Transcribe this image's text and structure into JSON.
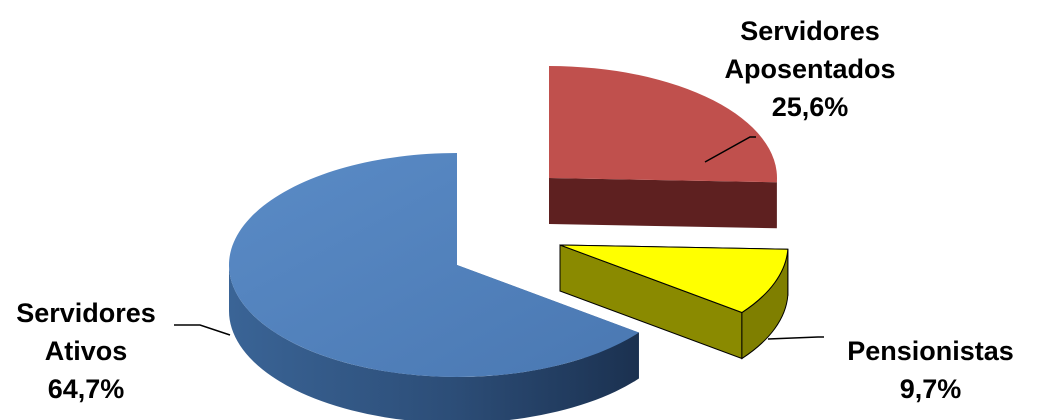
{
  "chart_data": {
    "type": "pie",
    "style": "3d-exploded",
    "slices": [
      {
        "label_lines": [
          "Servidores",
          "Aposentados"
        ],
        "value_label": "25,6%",
        "value": 25.6,
        "color": "#c0504d"
      },
      {
        "label_lines": [
          "Pensionistas"
        ],
        "value_label": "9,7%",
        "value": 9.7,
        "color": "#ffff00"
      },
      {
        "label_lines": [
          "Servidores",
          "Ativos"
        ],
        "value_label": "64,7%",
        "value": 64.7,
        "color": "#4f81bd"
      }
    ]
  }
}
